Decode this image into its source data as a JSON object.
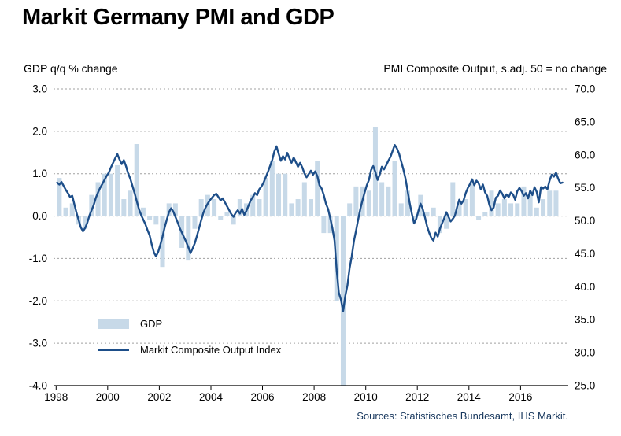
{
  "title": "Markit Germany PMI and GDP",
  "axes": {
    "left_header": "GDP q/q % change",
    "right_header": "PMI Composite Output, s.adj. 50 = no change",
    "left_ticks": [
      "3.0",
      "2.0",
      "1.0",
      "0.0",
      "-1.0",
      "-2.0",
      "-3.0",
      "-4.0"
    ],
    "right_ticks": [
      "70.0",
      "65.0",
      "60.0",
      "55.0",
      "50.0",
      "45.0",
      "40.0",
      "35.0",
      "30.0",
      "25.0"
    ],
    "x_ticks": [
      "1998",
      "2000",
      "2002",
      "2004",
      "2006",
      "2008",
      "2010",
      "2012",
      "2014",
      "2016"
    ]
  },
  "legend": {
    "gdp_label": "GDP",
    "pmi_label": "Markit Composite Output Index"
  },
  "source": "Sources: Statistisches Bundesamt, IHS Markit.",
  "colors": {
    "bar": "#c7d9e8",
    "line": "#1d4e89",
    "grid": "#a0a0a0",
    "axis": "#000000",
    "source_text": "#17375d"
  },
  "chart_data": {
    "type": "combo",
    "title": "Markit Germany PMI and GDP",
    "left_axis": {
      "label": "GDP q/q % change",
      "min": -4.0,
      "max": 3.0,
      "tick_step": 1.0
    },
    "right_axis": {
      "label": "PMI Composite Output, s.adj. 50 = no change",
      "min": 25.0,
      "max": 70.0,
      "tick_step": 5.0,
      "note": "50 = no change"
    },
    "x_range": {
      "start": 1998,
      "end": 2017.75,
      "tick_labels": [
        "1998",
        "2000",
        "2002",
        "2004",
        "2006",
        "2008",
        "2010",
        "2012",
        "2014",
        "2016"
      ]
    },
    "gridlines": "horizontal-dotted",
    "legend_position": "inside-lower-left",
    "series": [
      {
        "name": "GDP",
        "type": "bar",
        "axis": "left",
        "frequency": "quarterly",
        "start": "1998-Q1",
        "values": [
          0.9,
          0.2,
          0.3,
          -0.2,
          -0.3,
          0.5,
          0.8,
          1.0,
          1.0,
          1.2,
          0.4,
          0.6,
          1.7,
          0.2,
          -0.1,
          -0.2,
          -1.2,
          0.3,
          0.3,
          -0.75,
          -1.05,
          -0.3,
          0.4,
          0.5,
          0.4,
          -0.1,
          0.1,
          -0.2,
          0.4,
          0.3,
          0.5,
          0.4,
          0.9,
          1.3,
          1.0,
          1.0,
          0.3,
          0.4,
          0.8,
          0.4,
          1.3,
          -0.4,
          -0.4,
          -2.0,
          -4.0,
          0.3,
          0.7,
          0.7,
          0.6,
          2.1,
          0.8,
          0.7,
          1.3,
          0.3,
          0.6,
          -0.1,
          0.5,
          0.1,
          0.2,
          -0.4,
          -0.3,
          0.8,
          0.3,
          0.4,
          0.8,
          -0.1,
          0.1,
          0.6,
          0.3,
          0.4,
          0.3,
          0.3,
          0.7,
          0.5,
          0.2,
          0.4,
          0.6,
          0.6
        ]
      },
      {
        "name": "Markit Composite Output Index",
        "type": "line",
        "axis": "right",
        "frequency": "monthly",
        "start": "1998-01",
        "values": [
          55.8,
          55.5,
          55.9,
          55.3,
          54.7,
          54.2,
          53.6,
          53.8,
          52.5,
          51.2,
          50.1,
          49.0,
          48.4,
          48.9,
          49.7,
          50.8,
          51.6,
          52.4,
          53.5,
          54.3,
          55.0,
          55.6,
          56.2,
          56.8,
          57.3,
          58.1,
          58.8,
          59.5,
          60.1,
          59.3,
          58.6,
          59.2,
          58.3,
          57.2,
          56.4,
          55.3,
          54.2,
          53.0,
          51.8,
          50.9,
          50.2,
          49.5,
          48.6,
          47.8,
          46.4,
          45.2,
          44.6,
          45.3,
          46.4,
          47.6,
          49.0,
          50.2,
          51.3,
          51.9,
          51.4,
          50.6,
          49.8,
          48.9,
          48.2,
          47.5,
          46.8,
          46.0,
          45.1,
          45.8,
          46.6,
          47.7,
          48.9,
          50.1,
          51.2,
          52.0,
          52.6,
          53.1,
          53.5,
          53.9,
          54.1,
          53.6,
          53.1,
          53.4,
          52.8,
          52.2,
          51.6,
          51.0,
          50.6,
          51.2,
          51.6,
          51.1,
          51.8,
          50.9,
          51.5,
          52.3,
          53.1,
          53.6,
          54.2,
          53.9,
          54.8,
          55.2,
          55.8,
          56.6,
          57.4,
          58.3,
          59.2,
          60.5,
          61.3,
          60.2,
          59.1,
          59.8,
          59.3,
          60.3,
          59.5,
          58.8,
          59.6,
          58.9,
          58.2,
          58.8,
          58.1,
          57.2,
          56.6,
          57.1,
          57.6,
          57.0,
          57.5,
          56.8,
          55.4,
          54.9,
          53.9,
          52.6,
          51.8,
          50.4,
          48.9,
          47.0,
          42.5,
          39.1,
          38.0,
          36.3,
          38.6,
          40.2,
          42.8,
          44.6,
          46.9,
          48.5,
          50.2,
          51.8,
          53.1,
          54.3,
          55.4,
          56.2,
          57.7,
          58.3,
          57.4,
          56.2,
          57.0,
          58.2,
          57.8,
          58.4,
          59.1,
          59.7,
          60.6,
          61.5,
          61.0,
          60.2,
          59.0,
          57.8,
          56.4,
          54.5,
          52.6,
          51.0,
          49.6,
          50.3,
          51.5,
          52.6,
          51.8,
          50.6,
          49.2,
          48.2,
          47.4,
          47.0,
          48.2,
          47.6,
          48.8,
          49.6,
          50.4,
          51.3,
          50.6,
          49.9,
          50.3,
          50.8,
          52.1,
          53.2,
          52.6,
          53.1,
          54.2,
          55.0,
          55.6,
          56.3,
          55.4,
          56.1,
          55.7,
          54.8,
          55.5,
          54.3,
          53.8,
          52.4,
          51.6,
          52.0,
          53.5,
          53.8,
          54.6,
          54.1,
          53.4,
          54.0,
          53.6,
          54.3,
          54.0,
          53.2,
          54.5,
          55.0,
          54.5,
          53.8,
          54.2,
          53.4,
          54.6,
          53.9,
          55.1,
          54.4,
          52.8,
          55.1,
          54.9,
          55.2,
          54.8,
          56.1,
          57.0,
          56.7,
          57.3,
          56.4,
          55.7,
          55.8
        ]
      }
    ]
  }
}
